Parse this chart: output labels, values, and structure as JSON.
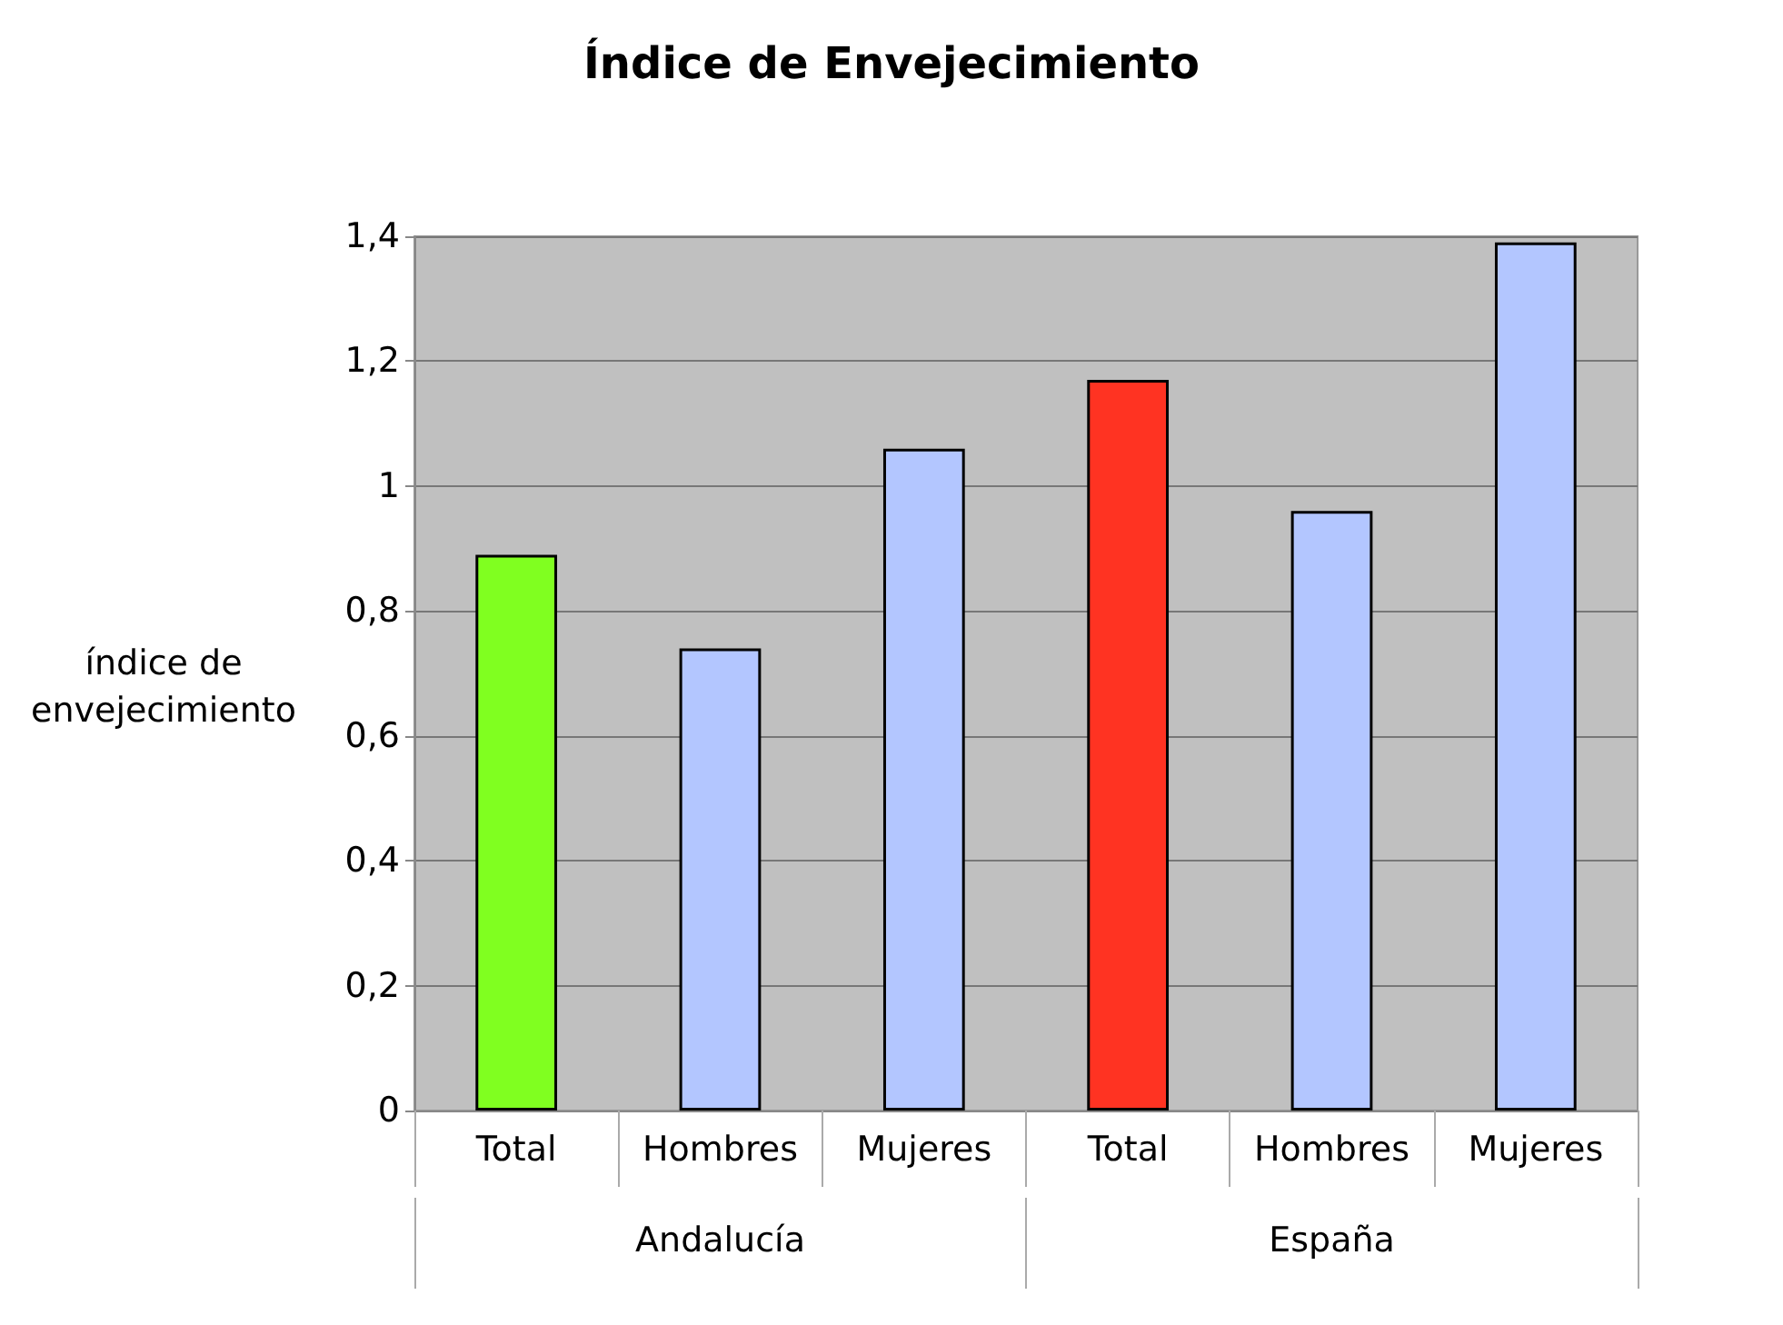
{
  "chart_data": {
    "type": "bar",
    "title": "Índice de Envejecimiento",
    "ylabel": "índice de\nenvejecimiento",
    "categories": [
      "Total",
      "Hombres",
      "Mujeres",
      "Total",
      "Hombres",
      "Mujeres"
    ],
    "values": [
      0.89,
      0.74,
      1.06,
      1.17,
      0.96,
      1.39
    ],
    "colors": [
      "#80ff20",
      "#b3c6ff",
      "#b3c6ff",
      "#ff3322",
      "#b3c6ff",
      "#b3c6ff"
    ],
    "annotations": [
      "Andalucía",
      "España"
    ],
    "ylim": [
      0,
      1.4
    ],
    "yticks": [
      0,
      {
        "value": 0.2,
        "label": "0,2"
      },
      {
        "value": 0.4,
        "label": "0,4"
      },
      {
        "value": 0.6,
        "label": "0,6"
      },
      {
        "value": 0.8,
        "label": "0,8"
      },
      1,
      {
        "value": 1.2,
        "label": "1,2"
      },
      {
        "value": 1.4,
        "label": "1,4"
      }
    ],
    "grid": "y"
  }
}
